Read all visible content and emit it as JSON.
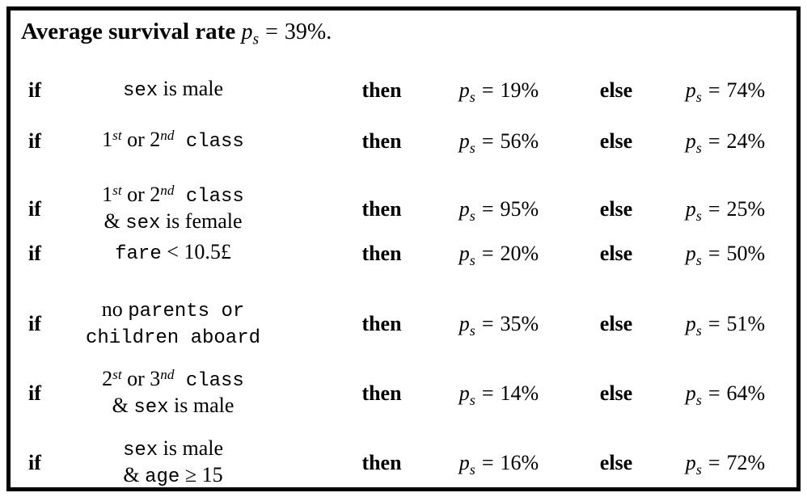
{
  "figure": {
    "title": {
      "label": "Average survival rate",
      "var": "p",
      "sub": "s",
      "eq": "=",
      "value": "39%."
    }
  },
  "keywords": {
    "if": "if",
    "then": "then",
    "else": "else",
    "var": "p",
    "sub": "s",
    "eq": "="
  },
  "rules": [
    {
      "condition": [
        [
          {
            "f": "mono",
            "t": "sex"
          },
          {
            "f": "serif",
            "t": " is male"
          }
        ]
      ],
      "then_value": "19%",
      "else_value": "74%"
    },
    {
      "condition": [
        [
          {
            "f": "serif",
            "t": "1"
          },
          {
            "f": "sup",
            "t": "st"
          },
          {
            "f": "serif",
            "t": " or 2"
          },
          {
            "f": "sup",
            "t": "nd"
          },
          {
            "f": "mono",
            "t": " class"
          }
        ]
      ],
      "then_value": "56%",
      "else_value": "24%"
    },
    {
      "condition": [
        [
          {
            "f": "serif",
            "t": "1"
          },
          {
            "f": "sup",
            "t": "st"
          },
          {
            "f": "serif",
            "t": " or 2"
          },
          {
            "f": "sup",
            "t": "nd"
          },
          {
            "f": "mono",
            "t": " class"
          }
        ],
        [
          {
            "f": "serif",
            "t": "& "
          },
          {
            "f": "mono",
            "t": "sex"
          },
          {
            "f": "serif",
            "t": " is female"
          }
        ]
      ],
      "then_value": "95%",
      "else_value": "25%"
    },
    {
      "condition": [
        [
          {
            "f": "mono",
            "t": "fare"
          },
          {
            "f": "serif",
            "t": " < 10.5£"
          }
        ]
      ],
      "then_value": "20%",
      "else_value": "50%"
    },
    {
      "condition": [
        [
          {
            "f": "serif",
            "t": "no "
          },
          {
            "f": "mono",
            "t": "parents or"
          }
        ],
        [
          {
            "f": "mono",
            "t": "children aboard"
          }
        ]
      ],
      "then_value": "35%",
      "else_value": "51%"
    },
    {
      "condition": [
        [
          {
            "f": "serif",
            "t": "2"
          },
          {
            "f": "sup",
            "t": "st"
          },
          {
            "f": "serif",
            "t": " or 3"
          },
          {
            "f": "sup",
            "t": "nd"
          },
          {
            "f": "mono",
            "t": " class"
          }
        ],
        [
          {
            "f": "serif",
            "t": "& "
          },
          {
            "f": "mono",
            "t": "sex"
          },
          {
            "f": "serif",
            "t": " is male"
          }
        ]
      ],
      "then_value": "14%",
      "else_value": "64%"
    },
    {
      "condition": [
        [
          {
            "f": "mono",
            "t": "sex"
          },
          {
            "f": "serif",
            "t": " is male"
          }
        ],
        [
          {
            "f": "serif",
            "t": "& "
          },
          {
            "f": "mono",
            "t": "age"
          },
          {
            "f": "serif",
            "t": " ≥ 15"
          }
        ]
      ],
      "then_value": "16%",
      "else_value": "72%"
    }
  ]
}
